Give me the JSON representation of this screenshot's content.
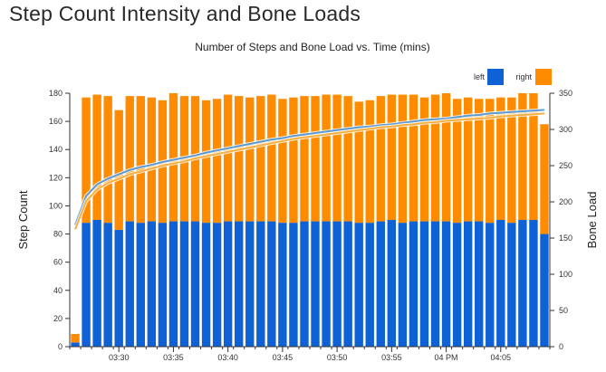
{
  "page": {
    "title": "Step Count Intensity and Bone Loads"
  },
  "chart_data": {
    "type": "bar",
    "stacked": true,
    "title": "Number of Steps and Bone Load vs. Time (mins)",
    "ylabel": "Step Count",
    "y2label": "Bone Load",
    "ylim": [
      0,
      180
    ],
    "y2lim": [
      0,
      350
    ],
    "yticks": [
      0,
      20,
      40,
      60,
      80,
      100,
      120,
      140,
      160,
      180
    ],
    "y2ticks": [
      0,
      50,
      100,
      150,
      200,
      250,
      300,
      350
    ],
    "xtick_labels": [
      "03:30",
      "03:35",
      "03:40",
      "03:45",
      "03:50",
      "03:55",
      "04 PM",
      "04:05"
    ],
    "legend": {
      "position": "top-right",
      "entries": [
        "left",
        "right"
      ]
    },
    "colors": {
      "left": "#0f62d6",
      "right": "#ff8c00",
      "line_left": "#5b9bd5",
      "line_right": "#f5b041",
      "axis": "#333333"
    },
    "x": [
      "03:26",
      "03:27",
      "03:28",
      "03:29",
      "03:30",
      "03:31",
      "03:32",
      "03:33",
      "03:34",
      "03:35",
      "03:36",
      "03:37",
      "03:38",
      "03:39",
      "03:40",
      "03:41",
      "03:42",
      "03:43",
      "03:44",
      "03:45",
      "03:46",
      "03:47",
      "03:48",
      "03:49",
      "03:50",
      "03:51",
      "03:52",
      "03:53",
      "03:54",
      "03:55",
      "03:56",
      "03:57",
      "03:58",
      "03:59",
      "04:00",
      "04:01",
      "04:02",
      "04:03",
      "04:04",
      "04:05",
      "04:06",
      "04:07",
      "04:08",
      "04:09"
    ],
    "series": [
      {
        "name": "left",
        "values": [
          3,
          88,
          90,
          88,
          83,
          89,
          88,
          89,
          88,
          89,
          89,
          89,
          88,
          88,
          89,
          89,
          89,
          89,
          89,
          88,
          88,
          89,
          89,
          89,
          89,
          89,
          88,
          88,
          89,
          90,
          88,
          89,
          89,
          89,
          89,
          88,
          89,
          89,
          88,
          90,
          88,
          90,
          90,
          80
        ]
      },
      {
        "name": "right",
        "values": [
          6,
          89,
          89,
          90,
          85,
          89,
          90,
          88,
          87,
          91,
          89,
          89,
          87,
          88,
          90,
          89,
          88,
          89,
          90,
          88,
          89,
          89,
          89,
          90,
          90,
          89,
          86,
          87,
          89,
          89,
          91,
          90,
          88,
          90,
          91,
          88,
          88,
          87,
          88,
          87,
          89,
          90,
          90,
          78
        ]
      }
    ],
    "lines": [
      {
        "name": "left",
        "axis": "y2",
        "values": [
          168,
          208,
          224,
          232,
          238,
          244,
          248,
          251,
          255,
          258,
          261,
          264,
          268,
          271,
          274,
          277,
          280,
          283,
          286,
          288,
          291,
          293,
          295,
          297,
          299,
          301,
          303,
          304,
          306,
          307,
          309,
          311,
          313,
          314,
          315,
          317,
          319,
          320,
          322,
          323,
          324,
          325,
          326,
          327
        ]
      },
      {
        "name": "right",
        "axis": "y2",
        "values": [
          162,
          201,
          217,
          226,
          232,
          238,
          242,
          246,
          250,
          253,
          256,
          260,
          263,
          266,
          269,
          272,
          275,
          278,
          281,
          284,
          287,
          289,
          291,
          293,
          295,
          297,
          299,
          301,
          303,
          304,
          306,
          307,
          309,
          310,
          312,
          313,
          314,
          315,
          316,
          318,
          319,
          320,
          321,
          322
        ]
      }
    ]
  }
}
